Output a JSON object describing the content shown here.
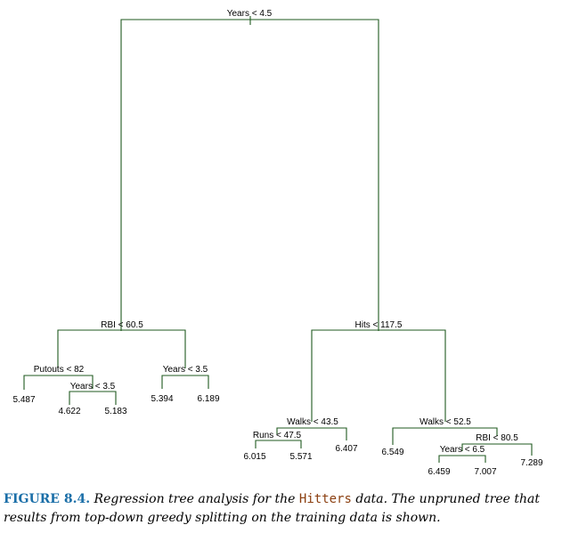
{
  "tree": {
    "nodes": [
      {
        "id": "n0",
        "label": "Years < 4.5",
        "leaf": false
      },
      {
        "id": "n1",
        "label": "RBI < 60.5",
        "leaf": false
      },
      {
        "id": "n2",
        "label": "Hits < 117.5",
        "leaf": false
      },
      {
        "id": "n3",
        "label": "Putouts < 82",
        "leaf": false
      },
      {
        "id": "n4",
        "label": "Years < 3.5",
        "leaf": false
      },
      {
        "id": "n5",
        "label": "Years < 3.5",
        "leaf": false
      },
      {
        "id": "n6",
        "label": "Walks < 43.5",
        "leaf": false
      },
      {
        "id": "n7",
        "label": "Walks < 52.5",
        "leaf": false
      },
      {
        "id": "n8",
        "label": "Runs < 47.5",
        "leaf": false
      },
      {
        "id": "n9",
        "label": "RBI < 80.5",
        "leaf": false
      },
      {
        "id": "n10",
        "label": "Years < 6.5",
        "leaf": false
      },
      {
        "id": "l1",
        "label": "5.487",
        "leaf": true
      },
      {
        "id": "l2",
        "label": "4.622",
        "leaf": true
      },
      {
        "id": "l3",
        "label": "5.183",
        "leaf": true
      },
      {
        "id": "l4",
        "label": "5.394",
        "leaf": true
      },
      {
        "id": "l5",
        "label": "6.189",
        "leaf": true
      },
      {
        "id": "l6",
        "label": "6.015",
        "leaf": true
      },
      {
        "id": "l7",
        "label": "5.571",
        "leaf": true
      },
      {
        "id": "l8",
        "label": "6.407",
        "leaf": true
      },
      {
        "id": "l9",
        "label": "6.549",
        "leaf": true
      },
      {
        "id": "l10",
        "label": "6.459",
        "leaf": true
      },
      {
        "id": "l11",
        "label": "7.007",
        "leaf": true
      },
      {
        "id": "l12",
        "label": "7.289",
        "leaf": true
      }
    ]
  },
  "caption": {
    "figure_label": "FIGURE 8.4.",
    "text_before": " Regression tree analysis for the ",
    "dataset": "Hitters",
    "text_after": " data. The unpruned tree that results from top-down greedy splitting on the training data is shown."
  }
}
